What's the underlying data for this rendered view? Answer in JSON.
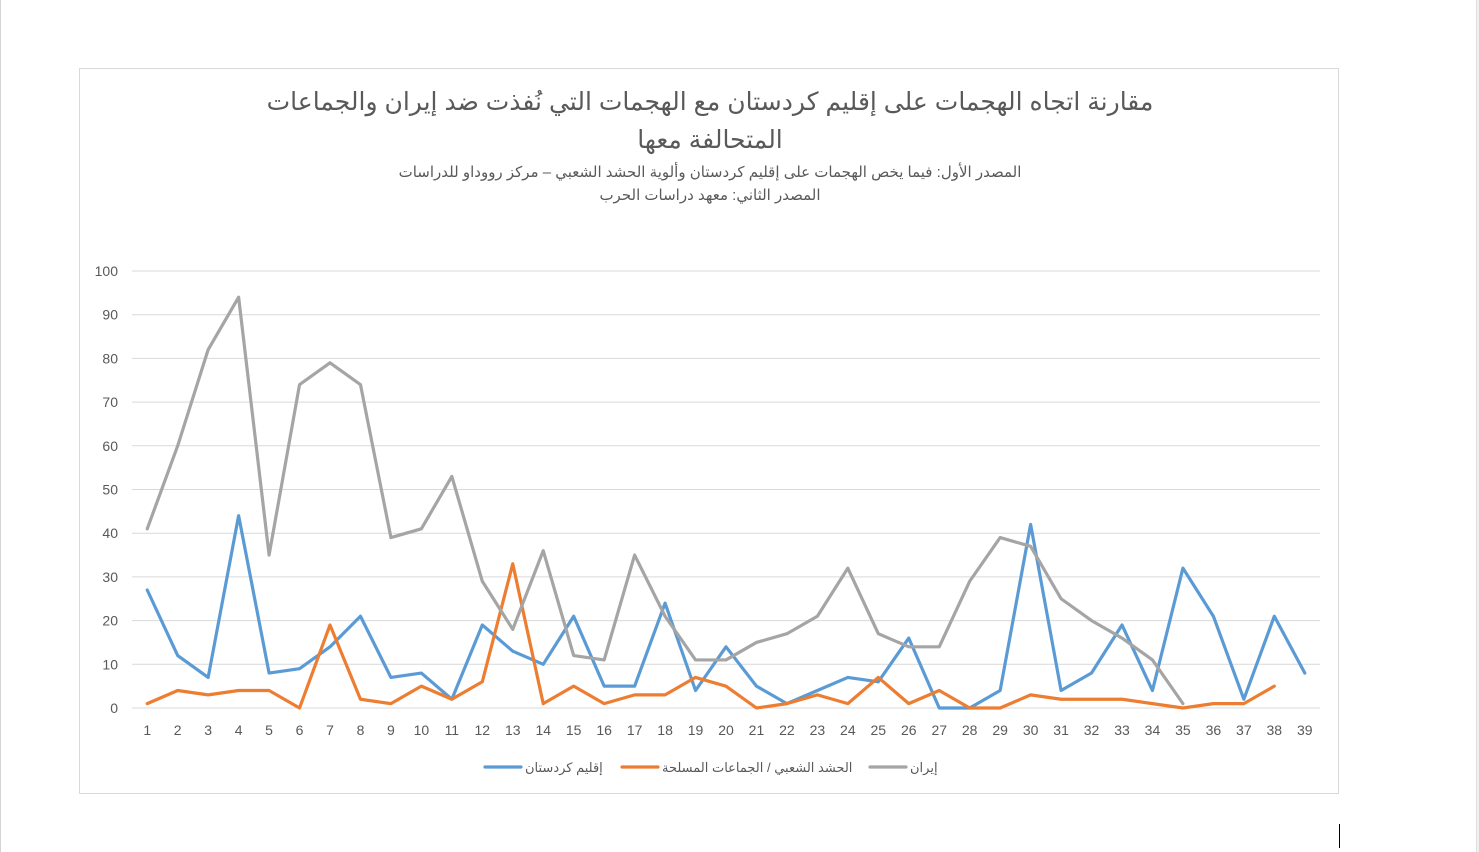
{
  "chart_data": {
    "type": "line",
    "title_lines": [
      "مقارنة اتجاه الهجمات على إقليم كردستان مع الهجمات التي نُفذت ضد إيران والجماعات",
      "المتحالفة معها"
    ],
    "subtitle_lines": [
      "المصدر الأول: فيما يخص الهجمات على إقليم كردستان وألوية الحشد الشعبي – مركز رووداو للدراسات",
      "المصدر الثاني: معهد دراسات الحرب"
    ],
    "xlabel": "",
    "ylabel": "",
    "ylim": [
      0,
      100
    ],
    "yticks": [
      0,
      10,
      20,
      30,
      40,
      50,
      60,
      70,
      80,
      90,
      100
    ],
    "categories": [
      "1",
      "2",
      "3",
      "4",
      "5",
      "6",
      "7",
      "8",
      "9",
      "10",
      "11",
      "12",
      "13",
      "14",
      "15",
      "16",
      "17",
      "18",
      "19",
      "20",
      "21",
      "22",
      "23",
      "24",
      "25",
      "26",
      "27",
      "28",
      "29",
      "30",
      "31",
      "32",
      "33",
      "34",
      "35",
      "36",
      "37",
      "38",
      "39"
    ],
    "grid": "horizontal",
    "legend_position": "bottom",
    "series": [
      {
        "name": "إقليم كردستان",
        "color": "#5b9bd5",
        "values": [
          27,
          12,
          7,
          44,
          8,
          9,
          14,
          21,
          7,
          8,
          2,
          19,
          13,
          10,
          21,
          5,
          5,
          24,
          4,
          14,
          5,
          1,
          4,
          7,
          6,
          16,
          0,
          0,
          4,
          42,
          4,
          8,
          19,
          4,
          32,
          21,
          2,
          21,
          8
        ]
      },
      {
        "name": "الحشد الشعبي / الجماعات المسلحة",
        "color": "#ed7d31",
        "values": [
          1,
          4,
          3,
          4,
          4,
          0,
          19,
          2,
          1,
          5,
          2,
          6,
          33,
          1,
          5,
          1,
          3,
          3,
          7,
          5,
          0,
          1,
          3,
          1,
          7,
          1,
          4,
          0,
          0,
          3,
          2,
          2,
          2,
          1,
          0,
          1,
          1,
          5,
          null
        ]
      },
      {
        "name": "إيران",
        "color": "#a5a5a5",
        "values": [
          41,
          60,
          82,
          94,
          35,
          74,
          79,
          74,
          39,
          41,
          53,
          29,
          18,
          36,
          12,
          11,
          35,
          21,
          11,
          11,
          15,
          17,
          21,
          32,
          17,
          14,
          14,
          29,
          39,
          37,
          25,
          20,
          16,
          11,
          1,
          null,
          null,
          null,
          null
        ]
      }
    ]
  }
}
